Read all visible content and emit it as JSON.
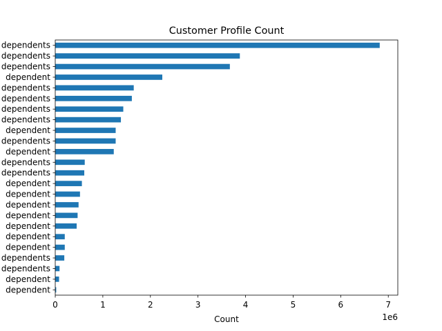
{
  "chart_data": {
    "type": "bar",
    "orientation": "horizontal",
    "title": "Customer Profile Count",
    "xlabel": "Count",
    "ylabel": "",
    "x_scale_label": "1e6",
    "xlim": [
      0,
      7200000
    ],
    "xticks": [
      0,
      1,
      2,
      3,
      4,
      5,
      6,
      7
    ],
    "grid": false,
    "legend": "none",
    "bar_color": "#1f77b4",
    "categories": [
      "dependents",
      "dependents",
      "dependents",
      "dependent",
      "dependents",
      "dependents",
      "dependents",
      "dependents",
      "dependent",
      "dependents",
      "dependent",
      "dependents",
      "dependents",
      "dependent",
      "dependent",
      "dependent",
      "dependent",
      "dependent",
      "dependent",
      "dependent",
      "dependents",
      "dependents",
      "dependent",
      "dependent"
    ],
    "values": [
      6820000,
      3880000,
      3670000,
      2250000,
      1650000,
      1610000,
      1430000,
      1380000,
      1270000,
      1270000,
      1230000,
      620000,
      610000,
      560000,
      520000,
      490000,
      470000,
      450000,
      200000,
      200000,
      190000,
      90000,
      80000,
      20000
    ]
  }
}
